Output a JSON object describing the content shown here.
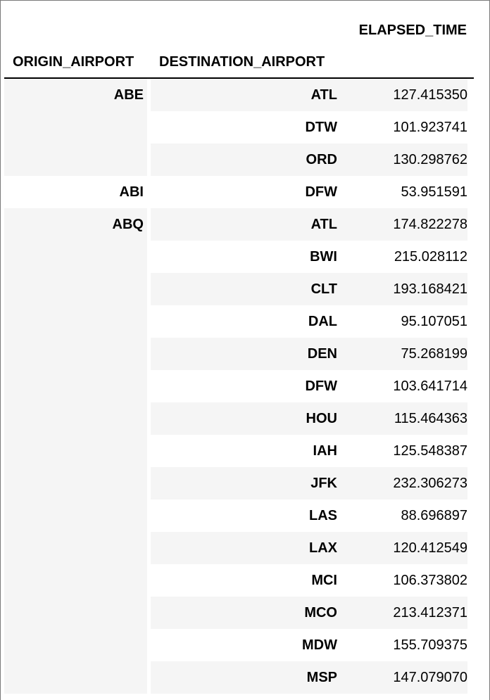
{
  "table": {
    "columns": {
      "elapsed": "ELAPSED_TIME",
      "origin": "ORIGIN_AIRPORT",
      "destination": "DESTINATION_AIRPORT"
    },
    "rows": [
      {
        "origin": "ABE",
        "destination": "ATL",
        "elapsed": "127.415350"
      },
      {
        "origin": "",
        "destination": "DTW",
        "elapsed": "101.923741"
      },
      {
        "origin": "",
        "destination": "ORD",
        "elapsed": "130.298762"
      },
      {
        "origin": "ABI",
        "destination": "DFW",
        "elapsed": "53.951591"
      },
      {
        "origin": "ABQ",
        "destination": "ATL",
        "elapsed": "174.822278"
      },
      {
        "origin": "",
        "destination": "BWI",
        "elapsed": "215.028112"
      },
      {
        "origin": "",
        "destination": "CLT",
        "elapsed": "193.168421"
      },
      {
        "origin": "",
        "destination": "DAL",
        "elapsed": "95.107051"
      },
      {
        "origin": "",
        "destination": "DEN",
        "elapsed": "75.268199"
      },
      {
        "origin": "",
        "destination": "DFW",
        "elapsed": "103.641714"
      },
      {
        "origin": "",
        "destination": "HOU",
        "elapsed": "115.464363"
      },
      {
        "origin": "",
        "destination": "IAH",
        "elapsed": "125.548387"
      },
      {
        "origin": "",
        "destination": "JFK",
        "elapsed": "232.306273"
      },
      {
        "origin": "",
        "destination": "LAS",
        "elapsed": "88.696897"
      },
      {
        "origin": "",
        "destination": "LAX",
        "elapsed": "120.412549"
      },
      {
        "origin": "",
        "destination": "MCI",
        "elapsed": "106.373802"
      },
      {
        "origin": "",
        "destination": "MCO",
        "elapsed": "213.412371"
      },
      {
        "origin": "",
        "destination": "MDW",
        "elapsed": "155.709375"
      },
      {
        "origin": "",
        "destination": "MSP",
        "elapsed": "147.079070"
      }
    ]
  },
  "colors": {
    "stripe": "#f5f5f5",
    "rule": "#000000",
    "frame_border": "#7a7a7a"
  }
}
